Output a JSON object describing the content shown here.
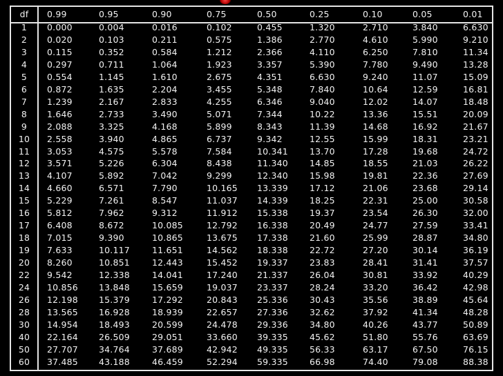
{
  "table": {
    "df_header": "df",
    "columns": [
      "0.99",
      "0.95",
      "0.90",
      "0.75",
      "0.50",
      "0.25",
      "0.10",
      "0.05",
      "0.01"
    ],
    "rows": [
      {
        "df": "1",
        "values": [
          "0.000",
          "0.004",
          "0.016",
          "0.102",
          "0.455",
          "1.320",
          "2.710",
          "3.840",
          "6.630"
        ]
      },
      {
        "df": "2",
        "values": [
          "0.020",
          "0.103",
          "0.211",
          "0.575",
          "1.386",
          "2.770",
          "4.610",
          "5.990",
          "9.210"
        ]
      },
      {
        "df": "3",
        "values": [
          "0.115",
          "0.352",
          "0.584",
          "1.212",
          "2.366",
          "4.110",
          "6.250",
          "7.810",
          "11.34"
        ]
      },
      {
        "df": "4",
        "values": [
          "0.297",
          "0.711",
          "1.064",
          "1.923",
          "3.357",
          "5.390",
          "7.780",
          "9.490",
          "13.28"
        ]
      },
      {
        "df": "5",
        "values": [
          "0.554",
          "1.145",
          "1.610",
          "2.675",
          "4.351",
          "6.630",
          "9.240",
          "11.07",
          "15.09"
        ]
      },
      {
        "df": "6",
        "values": [
          "0.872",
          "1.635",
          "2.204",
          "3.455",
          "5.348",
          "7.840",
          "10.64",
          "12.59",
          "16.81"
        ]
      },
      {
        "df": "7",
        "values": [
          "1.239",
          "2.167",
          "2.833",
          "4.255",
          "6.346",
          "9.040",
          "12.02",
          "14.07",
          "18.48"
        ]
      },
      {
        "df": "8",
        "values": [
          "1.646",
          "2.733",
          "3.490",
          "5.071",
          "7.344",
          "10.22",
          "13.36",
          "15.51",
          "20.09"
        ]
      },
      {
        "df": "9",
        "values": [
          "2.088",
          "3.325",
          "4.168",
          "5.899",
          "8.343",
          "11.39",
          "14.68",
          "16.92",
          "21.67"
        ]
      },
      {
        "df": "10",
        "values": [
          "2.558",
          "3.940",
          "4.865",
          "6.737",
          "9.342",
          "12.55",
          "15.99",
          "18.31",
          "23.21"
        ]
      },
      {
        "df": "11",
        "values": [
          "3.053",
          "4.575",
          "5.578",
          "7.584",
          "10.341",
          "13.70",
          "17.28",
          "19.68",
          "24.72"
        ]
      },
      {
        "df": "12",
        "values": [
          "3.571",
          "5.226",
          "6.304",
          "8.438",
          "11.340",
          "14.85",
          "18.55",
          "21.03",
          "26.22"
        ]
      },
      {
        "df": "13",
        "values": [
          "4.107",
          "5.892",
          "7.042",
          "9.299",
          "12.340",
          "15.98",
          "19.81",
          "22.36",
          "27.69"
        ]
      },
      {
        "df": "14",
        "values": [
          "4.660",
          "6.571",
          "7.790",
          "10.165",
          "13.339",
          "17.12",
          "21.06",
          "23.68",
          "29.14"
        ]
      },
      {
        "df": "15",
        "values": [
          "5.229",
          "7.261",
          "8.547",
          "11.037",
          "14.339",
          "18.25",
          "22.31",
          "25.00",
          "30.58"
        ]
      },
      {
        "df": "16",
        "values": [
          "5.812",
          "7.962",
          "9.312",
          "11.912",
          "15.338",
          "19.37",
          "23.54",
          "26.30",
          "32.00"
        ]
      },
      {
        "df": "17",
        "values": [
          "6.408",
          "8.672",
          "10.085",
          "12.792",
          "16.338",
          "20.49",
          "24.77",
          "27.59",
          "33.41"
        ]
      },
      {
        "df": "18",
        "values": [
          "7.015",
          "9.390",
          "10.865",
          "13.675",
          "17.338",
          "21.60",
          "25.99",
          "28.87",
          "34.80"
        ]
      },
      {
        "df": "19",
        "values": [
          "7.633",
          "10.117",
          "11.651",
          "14.562",
          "18.338",
          "22.72",
          "27.20",
          "30.14",
          "36.19"
        ]
      },
      {
        "df": "20",
        "values": [
          "8.260",
          "10.851",
          "12.443",
          "15.452",
          "19.337",
          "23.83",
          "28.41",
          "31.41",
          "37.57"
        ]
      },
      {
        "df": "22",
        "values": [
          "9.542",
          "12.338",
          "14.041",
          "17.240",
          "21.337",
          "26.04",
          "30.81",
          "33.92",
          "40.29"
        ]
      },
      {
        "df": "24",
        "values": [
          "10.856",
          "13.848",
          "15.659",
          "19.037",
          "23.337",
          "28.24",
          "33.20",
          "36.42",
          "42.98"
        ]
      },
      {
        "df": "26",
        "values": [
          "12.198",
          "15.379",
          "17.292",
          "20.843",
          "25.336",
          "30.43",
          "35.56",
          "38.89",
          "45.64"
        ]
      },
      {
        "df": "28",
        "values": [
          "13.565",
          "16.928",
          "18.939",
          "22.657",
          "27.336",
          "32.62",
          "37.92",
          "41.34",
          "48.28"
        ]
      },
      {
        "df": "30",
        "values": [
          "14.954",
          "18.493",
          "20.599",
          "24.478",
          "29.336",
          "34.80",
          "40.26",
          "43.77",
          "50.89"
        ]
      },
      {
        "df": "40",
        "values": [
          "22.164",
          "26.509",
          "29.051",
          "33.660",
          "39.335",
          "45.62",
          "51.80",
          "55.76",
          "63.69"
        ]
      },
      {
        "df": "50",
        "values": [
          "27.707",
          "34.764",
          "37.689",
          "42.942",
          "49.335",
          "56.33",
          "63.17",
          "67.50",
          "76.15"
        ]
      },
      {
        "df": "60",
        "values": [
          "37.485",
          "43.188",
          "46.459",
          "52.294",
          "59.335",
          "66.98",
          "74.40",
          "79.08",
          "88.38"
        ]
      }
    ]
  },
  "colors": {
    "background": "#000000",
    "text": "#f2f2f2",
    "rule": "#e6e6e6",
    "cursor": "#ff4444"
  }
}
